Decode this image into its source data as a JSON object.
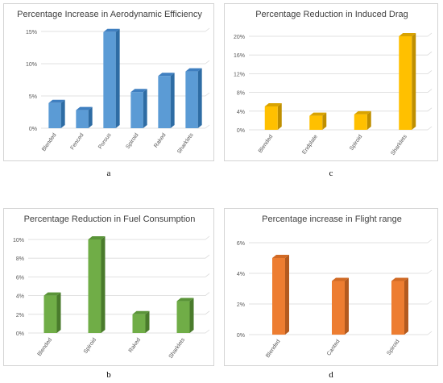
{
  "charts": [
    {
      "caption": "a",
      "chart_data": {
        "type": "bar",
        "title": "Percentage Increase in Aerodynamic Efficiency",
        "categories": [
          "Blended",
          "Fenced",
          "Porous",
          "Spiroid",
          "Raked",
          "Sharklets"
        ],
        "values": [
          3.9,
          2.8,
          14.9,
          5.6,
          8.1,
          8.8
        ],
        "ylim": [
          0,
          15
        ],
        "yticks": [
          "0%",
          "5%",
          "10%",
          "15%"
        ],
        "ytick_values": [
          0,
          5,
          10,
          15
        ],
        "grid": true,
        "color": "#5b9bd5",
        "side_color": "#2e6ca4",
        "top_color": "#3f7fc0"
      }
    },
    {
      "caption": "c",
      "chart_data": {
        "type": "bar",
        "title": "Percentage Reduction in Induced Drag",
        "categories": [
          "Blended",
          "Endplate",
          "Spiroid",
          "Sharklets"
        ],
        "values": [
          5,
          3,
          3.3,
          20
        ],
        "ylim": [
          0,
          20
        ],
        "yticks": [
          "0%",
          "4%",
          "8%",
          "12%",
          "16%",
          "20%"
        ],
        "ytick_values": [
          0,
          4,
          8,
          12,
          16,
          20
        ],
        "grid": true,
        "color": "#ffc000",
        "side_color": "#bf8f00",
        "top_color": "#d9a300"
      }
    },
    {
      "caption": "b",
      "chart_data": {
        "type": "bar",
        "title": "Percentage Reduction in Fuel Consumption",
        "categories": [
          "Blended",
          "Spiroid",
          "Raked",
          "Sharklets"
        ],
        "values": [
          4,
          10,
          2,
          3.4
        ],
        "ylim": [
          0,
          10
        ],
        "yticks": [
          "0%",
          "2%",
          "4%",
          "6%",
          "8%",
          "10%"
        ],
        "ytick_values": [
          0,
          2,
          4,
          6,
          8,
          10
        ],
        "grid": true,
        "color": "#70ad47",
        "side_color": "#4a7b2c",
        "top_color": "#5a9438"
      }
    },
    {
      "caption": "d",
      "chart_data": {
        "type": "bar",
        "title": "Percentage increase in Flight range",
        "categories": [
          "Blended",
          "Canted",
          "Spiroid"
        ],
        "values": [
          5,
          3.5,
          3.5
        ],
        "ylim": [
          0,
          6
        ],
        "yticks": [
          "0%",
          "2%",
          "4%",
          "6%"
        ],
        "ytick_values": [
          0,
          2,
          4,
          6
        ],
        "grid": true,
        "color": "#ed7d31",
        "side_color": "#b35a1f",
        "top_color": "#d16a25"
      }
    }
  ]
}
